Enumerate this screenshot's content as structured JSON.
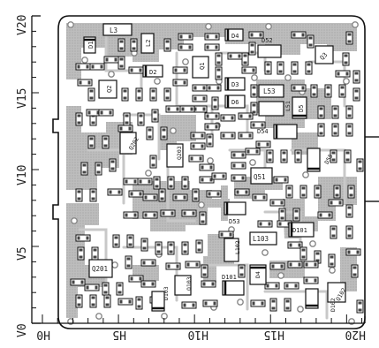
{
  "axes": {
    "y_ticks": [
      "V0",
      "V5",
      "V10",
      "V15",
      "V20"
    ],
    "x_ticks": [
      "H0",
      "H5",
      "H10",
      "H15",
      "H20"
    ]
  },
  "board": {
    "labels": [
      {
        "id": "l3",
        "text": "L3"
      },
      {
        "id": "l2",
        "text": "L2"
      },
      {
        "id": "d4",
        "text": "D4"
      },
      {
        "id": "d1",
        "text": "D1"
      },
      {
        "id": "d3",
        "text": "D3"
      },
      {
        "id": "d2",
        "text": "D2"
      },
      {
        "id": "q1",
        "text": "Q1"
      },
      {
        "id": "d52",
        "text": "D52"
      },
      {
        "id": "q2",
        "text": "Q2"
      },
      {
        "id": "q3",
        "text": "Q3"
      },
      {
        "id": "d5",
        "text": "D5"
      },
      {
        "id": "l53",
        "text": "L53"
      },
      {
        "id": "d6",
        "text": "D6"
      },
      {
        "id": "l51",
        "text": "L51"
      },
      {
        "id": "d54",
        "text": "D54"
      },
      {
        "id": "q202",
        "text": "Q202"
      },
      {
        "id": "q203",
        "text": "Q203"
      },
      {
        "id": "d55",
        "text": "D55"
      },
      {
        "id": "q51",
        "text": "Q51"
      },
      {
        "id": "d53",
        "text": "D53"
      },
      {
        "id": "l103",
        "text": "L103"
      },
      {
        "id": "d101b",
        "text": "D101"
      },
      {
        "id": "l102",
        "text": "L102"
      },
      {
        "id": "q201",
        "text": "Q201"
      },
      {
        "id": "d4b",
        "text": "D4"
      },
      {
        "id": "d101",
        "text": "D101"
      },
      {
        "id": "q102",
        "text": "Q102"
      },
      {
        "id": "d102",
        "text": "D102"
      },
      {
        "id": "q103",
        "text": "Q103"
      },
      {
        "id": "d103",
        "text": "D103"
      }
    ]
  }
}
